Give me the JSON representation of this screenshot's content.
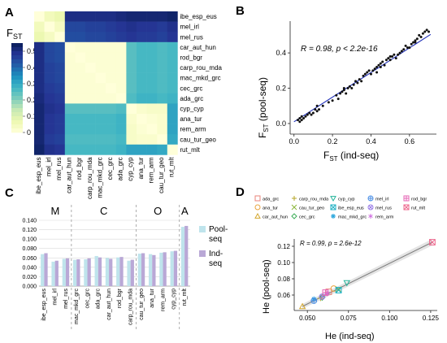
{
  "panels": {
    "a": {
      "letter": "A",
      "fst_label": "F",
      "fst_sub": "ST"
    },
    "b": {
      "letter": "B",
      "stat": "R = 0.98, p < 2.2e-16",
      "xlabel_main": "F",
      "xlabel_sub": "ST",
      "xlabel_tail": " (ind-seq)",
      "ylabel_main": "F",
      "ylabel_sub": "ST",
      "ylabel_tail": " (pool-seq)"
    },
    "c": {
      "letter": "C"
    },
    "d": {
      "letter": "D",
      "stat": "R = 0.99, p = 2.6e-12",
      "xlabel": "He (ind-seq)",
      "ylabel": "He (pool-seq)"
    }
  },
  "chart_data": [
    {
      "id": "A",
      "type": "heatmap",
      "title": "",
      "populations": [
        "ibe_esp_eus",
        "mel_irl",
        "mel_rus",
        "car_aut_hun",
        "rod_bgr",
        "carp_rou_mda",
        "mac_mkd_grc",
        "cec_grc",
        "ada_grc",
        "cyp_cyp",
        "ana_tur",
        "rem_arm",
        "cau_tur_geo",
        "rut_mlt"
      ],
      "row_labels": [
        "ibe_esp_eus",
        "mel_irl",
        "mel_rus",
        "car_aut_hun",
        "rod_bgr",
        "carp_rou_mda",
        "mac_mkd_grc",
        "cec_grc",
        "ada_grc",
        "cyp_cyp",
        "ana_tur",
        "rem_arm",
        "cau_tur_geo",
        "rut_mlt"
      ],
      "column_labels": [
        "ibe_esp_eus",
        "mel_irl",
        "mel_rus",
        "car_aut_hun",
        "rod_bgr",
        "carp_rou_mda",
        "mac_mkd_grc",
        "cec_grc",
        "ada_grc",
        "cyp_cyp",
        "ana_tur",
        "rem_arm",
        "cau_tur_geo",
        "rut_mlt"
      ],
      "colorbar": {
        "label": "FST",
        "ticks": [
          0,
          0.1,
          0.2,
          0.3,
          0.4,
          0.5
        ],
        "range": [
          0,
          0.55
        ],
        "colors": [
          "#ffffd9",
          "#edf8b1",
          "#c7e9b4",
          "#7fcdbb",
          "#41b6c4",
          "#1d91c0",
          "#225ea8",
          "#253494",
          "#081d58"
        ]
      },
      "values": [
        [
          0,
          0.05,
          0.07,
          0.5,
          0.5,
          0.5,
          0.5,
          0.5,
          0.51,
          0.52,
          0.52,
          0.52,
          0.52,
          0.53
        ],
        [
          0.05,
          0,
          0.04,
          0.45,
          0.45,
          0.46,
          0.46,
          0.47,
          0.48,
          0.49,
          0.48,
          0.48,
          0.47,
          0.49
        ],
        [
          0.07,
          0.04,
          0,
          0.44,
          0.44,
          0.45,
          0.45,
          0.46,
          0.47,
          0.48,
          0.47,
          0.47,
          0.46,
          0.48
        ],
        [
          0.5,
          0.45,
          0.44,
          0,
          0.01,
          0.01,
          0.01,
          0.01,
          0.01,
          0.25,
          0.27,
          0.27,
          0.26,
          0.27
        ],
        [
          0.5,
          0.45,
          0.44,
          0.01,
          0,
          0.01,
          0.01,
          0.01,
          0.01,
          0.25,
          0.27,
          0.27,
          0.26,
          0.27
        ],
        [
          0.5,
          0.46,
          0.45,
          0.01,
          0.01,
          0,
          0.01,
          0.01,
          0.01,
          0.25,
          0.27,
          0.27,
          0.26,
          0.27
        ],
        [
          0.5,
          0.46,
          0.45,
          0.01,
          0.01,
          0.01,
          0,
          0.01,
          0.01,
          0.25,
          0.27,
          0.27,
          0.26,
          0.27
        ],
        [
          0.5,
          0.47,
          0.46,
          0.01,
          0.01,
          0.01,
          0.01,
          0,
          0.01,
          0.25,
          0.27,
          0.27,
          0.26,
          0.27
        ],
        [
          0.51,
          0.48,
          0.47,
          0.01,
          0.01,
          0.01,
          0.01,
          0.01,
          0,
          0.26,
          0.28,
          0.28,
          0.27,
          0.28
        ],
        [
          0.52,
          0.49,
          0.48,
          0.25,
          0.25,
          0.25,
          0.25,
          0.25,
          0.26,
          0,
          0.02,
          0.03,
          0.03,
          0.31
        ],
        [
          0.52,
          0.48,
          0.47,
          0.27,
          0.27,
          0.27,
          0.27,
          0.27,
          0.28,
          0.02,
          0,
          0.01,
          0.02,
          0.31
        ],
        [
          0.52,
          0.48,
          0.47,
          0.27,
          0.27,
          0.27,
          0.27,
          0.27,
          0.28,
          0.03,
          0.01,
          0,
          0.02,
          0.31
        ],
        [
          0.52,
          0.47,
          0.46,
          0.26,
          0.26,
          0.26,
          0.26,
          0.26,
          0.27,
          0.03,
          0.02,
          0.02,
          0,
          0.3
        ],
        [
          0.53,
          0.49,
          0.48,
          0.27,
          0.27,
          0.27,
          0.27,
          0.27,
          0.28,
          0.31,
          0.31,
          0.31,
          0.3,
          0
        ]
      ]
    },
    {
      "id": "B",
      "type": "scatter",
      "xlabel": "FST (ind-seq)",
      "ylabel": "FST (pool-seq)",
      "xlim": [
        -0.02,
        0.74
      ],
      "ylim": [
        -0.06,
        0.58
      ],
      "xticks": [
        0.0,
        0.2,
        0.4,
        0.6
      ],
      "yticks": [
        0.0,
        0.2,
        0.4
      ],
      "annotation": "R = 0.98, p < 2.2e-16",
      "fit_line": [
        [
          0.0,
          0.01
        ],
        [
          0.71,
          0.505
        ]
      ],
      "points": [
        [
          0.02,
          0.02
        ],
        [
          0.03,
          0.03
        ],
        [
          0.04,
          0.02
        ],
        [
          0.05,
          0.03
        ],
        [
          0.06,
          0.04
        ],
        [
          0.04,
          0.04
        ],
        [
          0.03,
          0.01
        ],
        [
          0.07,
          0.05
        ],
        [
          0.08,
          0.06
        ],
        [
          0.1,
          0.06
        ],
        [
          0.12,
          0.07
        ],
        [
          0.13,
          0.08
        ],
        [
          0.12,
          0.1
        ],
        [
          0.11,
          0.08
        ],
        [
          0.18,
          0.12
        ],
        [
          0.2,
          0.13
        ],
        [
          0.22,
          0.16
        ],
        [
          0.23,
          0.14
        ],
        [
          0.24,
          0.17
        ],
        [
          0.25,
          0.18
        ],
        [
          0.26,
          0.19
        ],
        [
          0.27,
          0.17
        ],
        [
          0.28,
          0.2
        ],
        [
          0.29,
          0.21
        ],
        [
          0.3,
          0.2
        ],
        [
          0.31,
          0.22
        ],
        [
          0.32,
          0.24
        ],
        [
          0.33,
          0.23
        ],
        [
          0.34,
          0.25
        ],
        [
          0.35,
          0.24
        ],
        [
          0.36,
          0.27
        ],
        [
          0.37,
          0.28
        ],
        [
          0.38,
          0.29
        ],
        [
          0.4,
          0.28
        ],
        [
          0.41,
          0.3
        ],
        [
          0.42,
          0.31
        ],
        [
          0.43,
          0.29
        ],
        [
          0.44,
          0.33
        ],
        [
          0.45,
          0.32
        ],
        [
          0.46,
          0.35
        ],
        [
          0.47,
          0.33
        ],
        [
          0.48,
          0.36
        ],
        [
          0.49,
          0.37
        ],
        [
          0.5,
          0.36
        ],
        [
          0.51,
          0.38
        ],
        [
          0.52,
          0.39
        ],
        [
          0.53,
          0.37
        ],
        [
          0.55,
          0.4
        ],
        [
          0.56,
          0.41
        ],
        [
          0.57,
          0.42
        ],
        [
          0.58,
          0.44
        ],
        [
          0.6,
          0.43
        ],
        [
          0.61,
          0.45
        ],
        [
          0.62,
          0.46
        ],
        [
          0.63,
          0.47
        ],
        [
          0.64,
          0.48
        ],
        [
          0.65,
          0.5
        ],
        [
          0.66,
          0.49
        ],
        [
          0.67,
          0.51
        ],
        [
          0.68,
          0.52
        ],
        [
          0.69,
          0.53
        ],
        [
          0.7,
          0.52
        ],
        [
          0.63,
          0.46
        ],
        [
          0.59,
          0.43
        ],
        [
          0.45,
          0.34
        ],
        [
          0.39,
          0.3
        ],
        [
          0.26,
          0.2
        ],
        [
          0.15,
          0.1
        ],
        [
          0.09,
          0.05
        ],
        [
          0.43,
          0.32
        ],
        [
          0.5,
          0.38
        ],
        [
          0.54,
          0.39
        ]
      ]
    },
    {
      "id": "C",
      "type": "bar",
      "groups": [
        {
          "label": "M",
          "start": 0,
          "end": 2
        },
        {
          "label": "C",
          "start": 3,
          "end": 8
        },
        {
          "label": "O",
          "start": 9,
          "end": 12
        },
        {
          "label": "A",
          "start": 13,
          "end": 13
        }
      ],
      "categories": [
        "ibe_esp_eus",
        "mel_irl",
        "mel_rus",
        "mac_mkd_grc",
        "cec_grc",
        "ada_grc",
        "car_aut_hun",
        "rod_bgr",
        "carp_rou_mda",
        "cau_tur_geo",
        "ana_tur",
        "rem_arm",
        "cyp_cyp",
        "rut_mlt"
      ],
      "series": [
        {
          "name": "Pool-seq",
          "color": "#bfe4ec",
          "values": [
            0.068,
            0.052,
            0.058,
            0.056,
            0.057,
            0.064,
            0.06,
            0.061,
            0.054,
            0.069,
            0.068,
            0.071,
            0.074,
            0.126
          ]
        },
        {
          "name": "Ind-seq",
          "color": "#b9a8d6",
          "values": [
            0.07,
            0.054,
            0.059,
            0.057,
            0.059,
            0.061,
            0.058,
            0.062,
            0.056,
            0.07,
            0.066,
            0.072,
            0.075,
            0.128
          ]
        }
      ],
      "ylim": [
        0,
        0.14
      ],
      "yticks": [
        "0.000",
        "0.020",
        "0.040",
        "0.060",
        "0.080",
        "0.100",
        "0.120",
        "0.140"
      ],
      "legend": "right"
    },
    {
      "id": "D",
      "type": "scatter",
      "xlabel": "He (ind-seq)",
      "ylabel": "He (pool-seq)",
      "xlim": [
        0.042,
        0.129
      ],
      "ylim": [
        0.041,
        0.129
      ],
      "xticks": [
        "0.050",
        "0.075",
        "0.100",
        "0.125"
      ],
      "yticks": [
        "0.06",
        "0.08",
        "0.10",
        "0.12"
      ],
      "annotation": "R = 0.99, p = 2.6e-12",
      "fit_line": [
        [
          0.047,
          0.046
        ],
        [
          0.126,
          0.125
        ]
      ],
      "legend_cols": [
        [
          "ada_grc",
          "ana_tur",
          "car_aut_hun"
        ],
        [
          "carp_rou_mda",
          "cau_tur_geo",
          "cec_grc"
        ],
        [
          "cyp_cyp",
          "ibe_esp_eus",
          "mac_mkd_grc"
        ],
        [
          "mel_irl",
          "mel_rus",
          "rem_arm"
        ],
        [
          "rod_bgr",
          "rut_mlt"
        ]
      ],
      "legend_items": [
        {
          "name": "ada_grc",
          "symbol": "square",
          "color": "#e8837a"
        },
        {
          "name": "ana_tur",
          "symbol": "circle",
          "color": "#e9a33c"
        },
        {
          "name": "car_aut_hun",
          "symbol": "triangle",
          "color": "#d4a72c"
        },
        {
          "name": "carp_rou_mda",
          "symbol": "plus",
          "color": "#b6a526"
        },
        {
          "name": "cau_tur_geo",
          "symbol": "cross",
          "color": "#8bb63a"
        },
        {
          "name": "cec_grc",
          "symbol": "diamond",
          "color": "#3fae5a"
        },
        {
          "name": "cyp_cyp",
          "symbol": "tri-down",
          "color": "#23b49a"
        },
        {
          "name": "ibe_esp_eus",
          "symbol": "square-x",
          "color": "#21b2c4"
        },
        {
          "name": "mac_mkd_grc",
          "symbol": "star",
          "color": "#2aa6dc"
        },
        {
          "name": "mel_irl",
          "symbol": "circle-plus",
          "color": "#4b8fe6"
        },
        {
          "name": "mel_rus",
          "symbol": "circle-x",
          "color": "#9a7ce8"
        },
        {
          "name": "rem_arm",
          "symbol": "asterisk",
          "color": "#d06fe0"
        },
        {
          "name": "rod_bgr",
          "symbol": "square-plus",
          "color": "#e566b6"
        },
        {
          "name": "rut_mlt",
          "symbol": "square-x",
          "color": "#ed6a8f"
        }
      ],
      "points": [
        {
          "name": "ada_grc",
          "x": 0.063,
          "y": 0.064
        },
        {
          "name": "ana_tur",
          "x": 0.066,
          "y": 0.068
        },
        {
          "name": "car_aut_hun",
          "x": 0.047,
          "y": 0.046
        },
        {
          "name": "carp_rou_mda",
          "x": 0.058,
          "y": 0.056
        },
        {
          "name": "cau_tur_geo",
          "x": 0.069,
          "y": 0.067
        },
        {
          "name": "cec_grc",
          "x": 0.059,
          "y": 0.057
        },
        {
          "name": "cyp_cyp",
          "x": 0.074,
          "y": 0.075
        },
        {
          "name": "ibe_esp_eus",
          "x": 0.069,
          "y": 0.066
        },
        {
          "name": "mac_mkd_grc",
          "x": 0.054,
          "y": 0.055
        },
        {
          "name": "mel_irl",
          "x": 0.054,
          "y": 0.053
        },
        {
          "name": "mel_rus",
          "x": 0.059,
          "y": 0.058
        },
        {
          "name": "rem_arm",
          "x": 0.062,
          "y": 0.062
        },
        {
          "name": "rod_bgr",
          "x": 0.061,
          "y": 0.063
        },
        {
          "name": "rut_mlt",
          "x": 0.126,
          "y": 0.125
        }
      ]
    }
  ]
}
